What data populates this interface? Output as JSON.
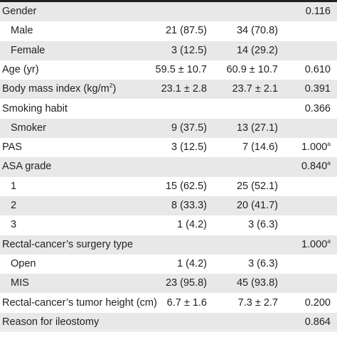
{
  "rows": [
    {
      "label": "Gender",
      "indent": false,
      "shaded": true,
      "a": "",
      "b": "",
      "p": "0.116",
      "sup": ""
    },
    {
      "label": "Male",
      "indent": true,
      "shaded": false,
      "a": "21 (87.5)",
      "b": "34 (70.8)",
      "p": "",
      "sup": ""
    },
    {
      "label": "Female",
      "indent": true,
      "shaded": true,
      "a": "3 (12.5)",
      "b": "14 (29.2)",
      "p": "",
      "sup": ""
    },
    {
      "label": "Age (yr)",
      "indent": false,
      "shaded": false,
      "a": "59.5 ± 10.7",
      "b": "60.9 ± 10.7",
      "p": "0.610",
      "sup": ""
    },
    {
      "label": "Body mass index (kg/m",
      "label_sup": "2",
      "label_after": ")",
      "indent": false,
      "shaded": true,
      "a": "23.1 ± 2.8",
      "b": "23.7 ± 2.1",
      "p": "0.391",
      "sup": ""
    },
    {
      "label": "Smoking habit",
      "indent": false,
      "shaded": false,
      "a": "",
      "b": "",
      "p": "0.366",
      "sup": ""
    },
    {
      "label": "Smoker",
      "indent": true,
      "shaded": true,
      "a": "9 (37.5)",
      "b": "13 (27.1)",
      "p": "",
      "sup": ""
    },
    {
      "label": "PAS",
      "indent": false,
      "shaded": false,
      "a": "3 (12.5)",
      "b": "7 (14.6)",
      "p": "1.000",
      "sup": "a"
    },
    {
      "label": "ASA grade",
      "indent": false,
      "shaded": true,
      "a": "",
      "b": "",
      "p": "0.840",
      "sup": "a"
    },
    {
      "label": "1",
      "indent": true,
      "shaded": false,
      "a": "15 (62.5)",
      "b": "25 (52.1)",
      "p": "",
      "sup": ""
    },
    {
      "label": "2",
      "indent": true,
      "shaded": true,
      "a": "8 (33.3)",
      "b": "20 (41.7)",
      "p": "",
      "sup": ""
    },
    {
      "label": "3",
      "indent": true,
      "shaded": false,
      "a": "1 (4.2)",
      "b": "3 (6.3)",
      "p": "",
      "sup": ""
    },
    {
      "label": "Rectal-cancer’s surgery type",
      "indent": false,
      "shaded": true,
      "a": "",
      "b": "",
      "p": "1.000",
      "sup": "a"
    },
    {
      "label": "Open",
      "indent": true,
      "shaded": false,
      "a": "1 (4.2)",
      "b": "3 (6.3)",
      "p": "",
      "sup": ""
    },
    {
      "label": "MIS",
      "indent": true,
      "shaded": true,
      "a": "23 (95.8)",
      "b": "45 (93.8)",
      "p": "",
      "sup": ""
    },
    {
      "label": "Rectal-cancer’s tumor height (cm)",
      "indent": false,
      "shaded": false,
      "a": "6.7 ± 1.6",
      "b": "7.3 ± 2.7",
      "p": "0.200",
      "sup": ""
    },
    {
      "label": "Reason for ileostomy",
      "indent": false,
      "shaded": true,
      "a": "",
      "b": "",
      "p": "0.864",
      "sup": ""
    }
  ]
}
